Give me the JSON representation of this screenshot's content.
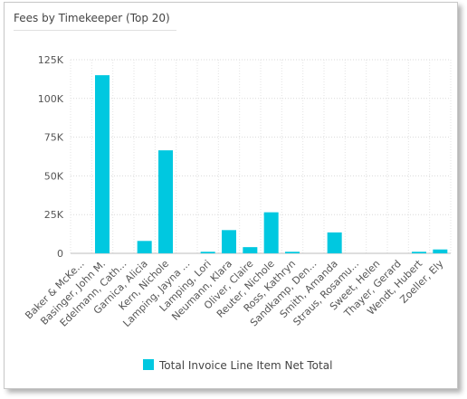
{
  "title": "Fees by Timekeeper (Top 20)",
  "chart_data": {
    "type": "bar",
    "categories": [
      "Baker & McKe...",
      "Basinger, John M.",
      "Edelmann, Cath...",
      "Garnica, Alicia",
      "Kern, Nichole",
      "Lamping, Jayna ...",
      "Lamping, Lori",
      "Neumann, Klara",
      "Oliver, Claire",
      "Reuter, Nichole",
      "Ross, Kathryn",
      "Sandkamp, Den...",
      "Smith, Amanda",
      "Straus, Rosamu...",
      "Sweet, Helen",
      "Thayer, Gerard",
      "Wendt, Hubert",
      "Zoeller, Ely"
    ],
    "series": [
      {
        "name": "Total Invoice Line Item Net Total",
        "values": [
          0,
          115000,
          0,
          8000,
          66500,
          0,
          1000,
          15000,
          4000,
          26500,
          1000,
          0,
          13500,
          0,
          0,
          0,
          1000,
          2500
        ]
      }
    ],
    "yticks": [
      "0",
      "25K",
      "50K",
      "75K",
      "100K",
      "125K"
    ],
    "ylim": [
      0,
      125000
    ],
    "legend": "bottom",
    "grid": true,
    "color": "#00c8e0"
  }
}
